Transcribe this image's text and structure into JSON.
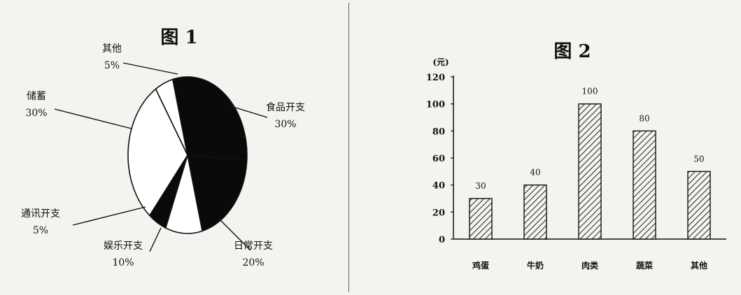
{
  "chart_data": [
    {
      "type": "pie",
      "title": "图 1",
      "slices": [
        {
          "label": "其他",
          "value": 5,
          "value_label": "5%",
          "color": "#ffffff"
        },
        {
          "label": "食品开支",
          "value": 30,
          "value_label": "30%",
          "color": "#0a0a0a"
        },
        {
          "label": "日常开支",
          "value": 20,
          "value_label": "20%",
          "color": "#0a0a0a"
        },
        {
          "label": "娱乐开支",
          "value": 10,
          "value_label": "10%",
          "color": "#ffffff"
        },
        {
          "label": "通讯开支",
          "value": 5,
          "value_label": "5%",
          "color": "#0a0a0a"
        },
        {
          "label": "储蓄",
          "value": 30,
          "value_label": "30%",
          "color": "#ffffff"
        }
      ]
    },
    {
      "type": "bar",
      "title": "图 2",
      "ylabel": "(元)",
      "ylim": [
        0,
        120
      ],
      "yticks": [
        0,
        20,
        40,
        60,
        80,
        100,
        120
      ],
      "categories": [
        "鸡蛋",
        "牛奶",
        "肉类",
        "蔬菜",
        "其他"
      ],
      "values": [
        30,
        40,
        100,
        80,
        50
      ],
      "value_labels": [
        "30",
        "40",
        "100",
        "80",
        "50"
      ],
      "bar_fill": "hatched"
    }
  ]
}
